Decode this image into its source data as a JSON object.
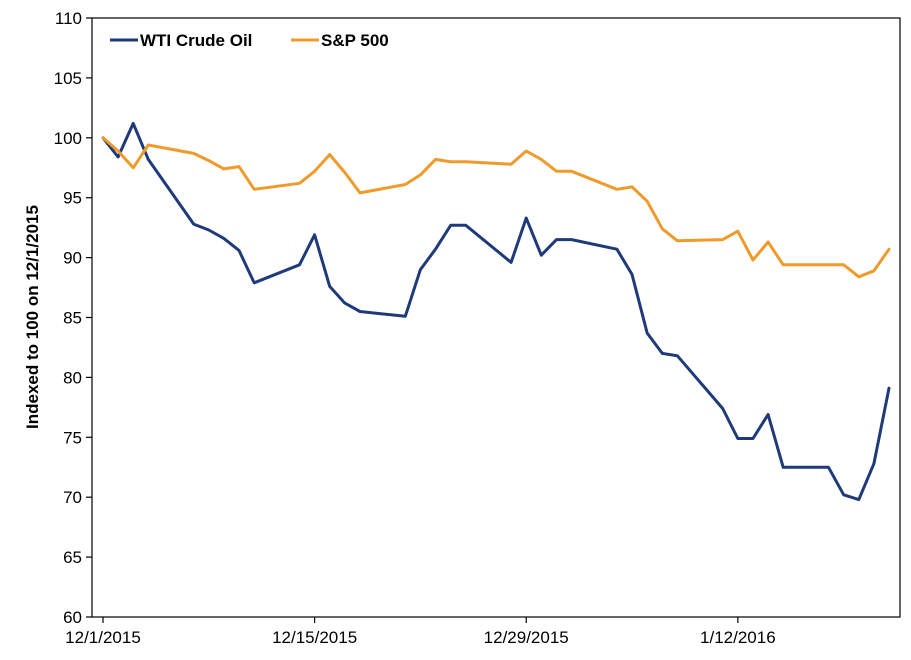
{
  "chart_data": {
    "type": "line",
    "ylabel": "Indexed to 100 on 12/1/2015",
    "ylim": [
      60,
      110
    ],
    "yticks": [
      60,
      65,
      70,
      75,
      80,
      85,
      90,
      95,
      100,
      105,
      110
    ],
    "xlim": [
      "2015-12-01",
      "2016-01-22"
    ],
    "xticks": [
      {
        "date": "2015-12-01",
        "label": "12/1/2015"
      },
      {
        "date": "2015-12-15",
        "label": "12/15/2015"
      },
      {
        "date": "2015-12-29",
        "label": "12/29/2015"
      },
      {
        "date": "2016-01-12",
        "label": "1/12/2016"
      }
    ],
    "grid": false,
    "legend_position": "top-left",
    "series": [
      {
        "name": "WTI Crude Oil",
        "color": "#1f3a7a",
        "points": [
          [
            "2015-12-01",
            100.0
          ],
          [
            "2015-12-02",
            98.4
          ],
          [
            "2015-12-03",
            101.2
          ],
          [
            "2015-12-04",
            98.2
          ],
          [
            "2015-12-07",
            92.8
          ],
          [
            "2015-12-08",
            92.3
          ],
          [
            "2015-12-09",
            91.6
          ],
          [
            "2015-12-10",
            90.6
          ],
          [
            "2015-12-11",
            87.9
          ],
          [
            "2015-12-14",
            89.4
          ],
          [
            "2015-12-15",
            91.9
          ],
          [
            "2015-12-16",
            87.6
          ],
          [
            "2015-12-17",
            86.2
          ],
          [
            "2015-12-18",
            85.5
          ],
          [
            "2015-12-21",
            85.1
          ],
          [
            "2015-12-22",
            89.0
          ],
          [
            "2015-12-23",
            90.7
          ],
          [
            "2015-12-24",
            92.7
          ],
          [
            "2015-12-25",
            92.7
          ],
          [
            "2015-12-28",
            89.6
          ],
          [
            "2015-12-29",
            93.3
          ],
          [
            "2015-12-30",
            90.2
          ],
          [
            "2015-12-31",
            91.5
          ],
          [
            "2016-01-01",
            91.5
          ],
          [
            "2016-01-04",
            90.7
          ],
          [
            "2016-01-05",
            88.6
          ],
          [
            "2016-01-06",
            83.7
          ],
          [
            "2016-01-07",
            82.0
          ],
          [
            "2016-01-08",
            81.8
          ],
          [
            "2016-01-11",
            77.4
          ],
          [
            "2016-01-12",
            74.9
          ],
          [
            "2016-01-13",
            74.9
          ],
          [
            "2016-01-14",
            76.9
          ],
          [
            "2016-01-15",
            72.5
          ],
          [
            "2016-01-18",
            72.5
          ],
          [
            "2016-01-19",
            70.2
          ],
          [
            "2016-01-20",
            69.8
          ],
          [
            "2016-01-21",
            72.8
          ],
          [
            "2016-01-22",
            79.1
          ]
        ]
      },
      {
        "name": "S&P 500",
        "color": "#f09a2b",
        "points": [
          [
            "2015-12-01",
            100.0
          ],
          [
            "2015-12-02",
            98.9
          ],
          [
            "2015-12-03",
            97.5
          ],
          [
            "2015-12-04",
            99.4
          ],
          [
            "2015-12-07",
            98.7
          ],
          [
            "2015-12-08",
            98.1
          ],
          [
            "2015-12-09",
            97.4
          ],
          [
            "2015-12-10",
            97.6
          ],
          [
            "2015-12-11",
            95.7
          ],
          [
            "2015-12-14",
            96.2
          ],
          [
            "2015-12-15",
            97.2
          ],
          [
            "2015-12-16",
            98.6
          ],
          [
            "2015-12-17",
            97.1
          ],
          [
            "2015-12-18",
            95.4
          ],
          [
            "2015-12-21",
            96.1
          ],
          [
            "2015-12-22",
            96.9
          ],
          [
            "2015-12-23",
            98.2
          ],
          [
            "2015-12-24",
            98.0
          ],
          [
            "2015-12-25",
            98.0
          ],
          [
            "2015-12-28",
            97.8
          ],
          [
            "2015-12-29",
            98.9
          ],
          [
            "2015-12-30",
            98.2
          ],
          [
            "2015-12-31",
            97.2
          ],
          [
            "2016-01-01",
            97.2
          ],
          [
            "2016-01-04",
            95.7
          ],
          [
            "2016-01-05",
            95.9
          ],
          [
            "2016-01-06",
            94.7
          ],
          [
            "2016-01-07",
            92.4
          ],
          [
            "2016-01-08",
            91.4
          ],
          [
            "2016-01-11",
            91.5
          ],
          [
            "2016-01-12",
            92.2
          ],
          [
            "2016-01-13",
            89.8
          ],
          [
            "2016-01-14",
            91.3
          ],
          [
            "2016-01-15",
            89.4
          ],
          [
            "2016-01-18",
            89.4
          ],
          [
            "2016-01-19",
            89.4
          ],
          [
            "2016-01-20",
            88.4
          ],
          [
            "2016-01-21",
            88.9
          ],
          [
            "2016-01-22",
            90.7
          ]
        ]
      }
    ]
  }
}
